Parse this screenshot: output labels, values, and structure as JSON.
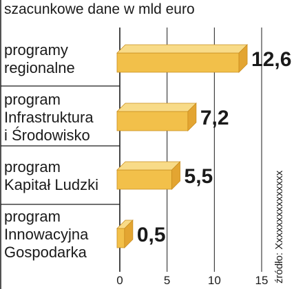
{
  "chart_data": {
    "type": "bar",
    "orientation": "horizontal",
    "subtitle": "szacunkowe dane w mld euro",
    "categories": [
      [
        "programy",
        "regionalne"
      ],
      [
        "program",
        "Infrastruktura",
        "i Środowisko"
      ],
      [
        "program",
        "Kapitał Ludzki"
      ],
      [
        "program",
        "Innowacyjna",
        "Gospodarka"
      ]
    ],
    "values": [
      12.6,
      7.2,
      5.5,
      0.5
    ],
    "value_labels": [
      "12,6",
      "7,2",
      "5,5",
      "0,5"
    ],
    "xlim": [
      0,
      15
    ],
    "xticks": [
      0,
      5,
      10,
      15
    ],
    "xtick_labels": [
      "0",
      "5",
      "10",
      "15"
    ],
    "grid": "vertical",
    "source": "źródło: Xxxxxxxxxxxxxxx",
    "colors": {
      "bar_front": "#f2c04a",
      "bar_top": "#f8db88",
      "bar_side": "#e3a532",
      "highlight_value": "#c8243c",
      "default_value": "#1a1a1a",
      "grid": "#1a1a1a",
      "axis": "#1a1a1a"
    },
    "highlight_index": 0
  }
}
